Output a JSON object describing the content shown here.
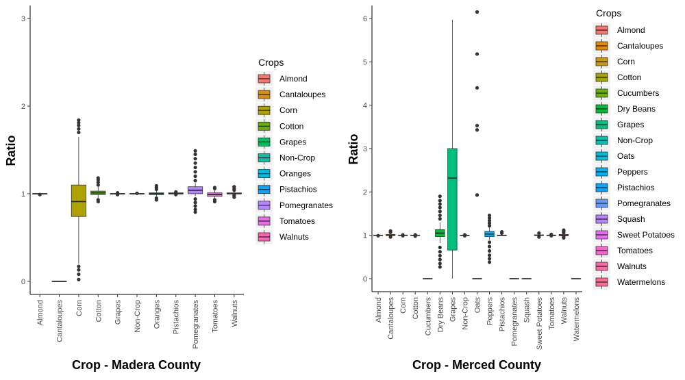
{
  "chart_data": [
    {
      "type": "box",
      "xlabel": "Crop - Madera County",
      "ylabel": "Ratio",
      "ylim": [
        -0.15,
        3.15
      ],
      "yticks": [
        0,
        1,
        2,
        3
      ],
      "grid": false,
      "legend_title": "Crops",
      "legend_position": "right",
      "categories": [
        "Almond",
        "Cantaloupes",
        "Corn",
        "Cotton",
        "Grapes",
        "Non-Crop",
        "Oranges",
        "Pistachios",
        "Pomegranates",
        "Tomatoes",
        "Walnuts"
      ],
      "colors": [
        "#F8766D",
        "#DB8E00",
        "#AEA200",
        "#64B200",
        "#00BD5C",
        "#00C1A7",
        "#00BADE",
        "#00A6FF",
        "#B385FF",
        "#EF67EB",
        "#FF63B6"
      ],
      "boxes": [
        {
          "lo": 1.0,
          "q1": 1.0,
          "med": 1.0,
          "q3": 1.0,
          "hi": 1.0,
          "outliers": [
            0.99
          ]
        },
        {
          "lo": 0.0,
          "q1": 0.0,
          "med": 0.0,
          "q3": 0.0,
          "hi": 0.0,
          "outliers": []
        },
        {
          "lo": 0.2,
          "q1": 0.74,
          "med": 0.91,
          "q3": 1.1,
          "hi": 1.65,
          "outliers": [
            1.7,
            1.74,
            1.78,
            1.81,
            1.84,
            0.17,
            0.13,
            0.08,
            0.02
          ]
        },
        {
          "lo": 0.95,
          "q1": 0.99,
          "med": 1.01,
          "q3": 1.03,
          "hi": 1.08,
          "outliers": [
            1.1,
            1.13,
            1.16,
            1.18,
            0.93,
            0.91
          ]
        },
        {
          "lo": 1.0,
          "q1": 1.0,
          "med": 1.0,
          "q3": 1.0,
          "hi": 1.0,
          "outliers": [
            1.01,
            0.99
          ]
        },
        {
          "lo": 1.0,
          "q1": 1.0,
          "med": 1.0,
          "q3": 1.0,
          "hi": 1.0,
          "outliers": [
            1.005
          ]
        },
        {
          "lo": 0.97,
          "q1": 0.99,
          "med": 1.0,
          "q3": 1.01,
          "hi": 1.03,
          "outliers": [
            1.05,
            1.07,
            1.09,
            0.95,
            0.93
          ]
        },
        {
          "lo": 1.0,
          "q1": 1.0,
          "med": 1.0,
          "q3": 1.01,
          "hi": 1.01,
          "outliers": [
            1.02,
            0.99
          ]
        },
        {
          "lo": 0.97,
          "q1": 1.0,
          "med": 1.04,
          "q3": 1.08,
          "hi": 1.12,
          "outliers": [
            1.15,
            1.2,
            1.25,
            1.3,
            1.35,
            1.4,
            1.45,
            1.49,
            0.94,
            0.9,
            0.86,
            0.82,
            0.79
          ]
        },
        {
          "lo": 0.95,
          "q1": 0.97,
          "med": 0.99,
          "q3": 1.01,
          "hi": 1.04,
          "outliers": [
            1.06,
            1.07,
            0.93,
            0.91
          ]
        },
        {
          "lo": 0.99,
          "q1": 1.0,
          "med": 1.0,
          "q3": 1.01,
          "hi": 1.02,
          "outliers": [
            1.04,
            1.06,
            1.08,
            0.98,
            0.96
          ]
        }
      ]
    },
    {
      "type": "box",
      "xlabel": "Crop - Merced County",
      "ylabel": "Ratio",
      "ylim": [
        -0.3,
        6.3
      ],
      "yticks": [
        0,
        1,
        2,
        3,
        4,
        5,
        6
      ],
      "grid": false,
      "legend_title": "Crops",
      "legend_position": "right",
      "categories": [
        "Almond",
        "Cantaloupes",
        "Corn",
        "Cotton",
        "Cucumbers",
        "Dry Beans",
        "Grapes",
        "Non-Crop",
        "Oats",
        "Peppers",
        "Pistachios",
        "Pomegranates",
        "Squash",
        "Sweet Potatoes",
        "Tomatoes",
        "Walnuts",
        "Watermelons"
      ],
      "colors": [
        "#F8766D",
        "#E58700",
        "#C99800",
        "#A3A500",
        "#6BB100",
        "#00BA38",
        "#00BF7D",
        "#00C0AF",
        "#00BCD8",
        "#00B0F6",
        "#00A5FF",
        "#619CFF",
        "#B983FF",
        "#E76BF3",
        "#FD61D1",
        "#FF67A4",
        "#FF6C91"
      ],
      "boxes": [
        {
          "lo": 1.0,
          "q1": 1.0,
          "med": 1.0,
          "q3": 1.0,
          "hi": 1.0,
          "outliers": [
            0.99
          ]
        },
        {
          "lo": 0.98,
          "q1": 1.0,
          "med": 1.0,
          "q3": 1.02,
          "hi": 1.05,
          "outliers": [
            1.07,
            1.1,
            0.96
          ]
        },
        {
          "lo": 1.0,
          "q1": 1.0,
          "med": 1.0,
          "q3": 1.0,
          "hi": 1.0,
          "outliers": [
            0.99,
            1.01
          ]
        },
        {
          "lo": 1.0,
          "q1": 1.0,
          "med": 1.0,
          "q3": 1.0,
          "hi": 1.0,
          "outliers": [
            0.98,
            1.01
          ]
        },
        {
          "lo": 0.0,
          "q1": 0.0,
          "med": 0.0,
          "q3": 0.0,
          "hi": 0.0,
          "outliers": []
        },
        {
          "lo": 0.82,
          "q1": 0.97,
          "med": 1.05,
          "q3": 1.13,
          "hi": 1.3,
          "outliers": [
            1.38,
            1.46,
            1.55,
            1.64,
            1.72,
            1.8,
            1.9,
            0.72,
            0.62,
            0.53,
            0.44,
            0.35,
            0.27
          ]
        },
        {
          "lo": 0.0,
          "q1": 0.66,
          "med": 2.32,
          "q3": 3.0,
          "hi": 5.97,
          "outliers": []
        },
        {
          "lo": 1.0,
          "q1": 1.0,
          "med": 1.0,
          "q3": 1.0,
          "hi": 1.0,
          "outliers": [
            1.01,
            0.99
          ]
        },
        {
          "lo": 0.0,
          "q1": 0.0,
          "med": 0.0,
          "q3": 0.0,
          "hi": 0.0,
          "outliers": [
            1.93,
            3.43,
            3.53,
            4.4,
            5.18,
            6.15
          ]
        },
        {
          "lo": 0.9,
          "q1": 0.97,
          "med": 1.03,
          "q3": 1.09,
          "hi": 1.18,
          "outliers": [
            1.22,
            1.28,
            1.34,
            1.4,
            1.46,
            0.84,
            0.74,
            0.64,
            0.54,
            0.46,
            0.38
          ]
        },
        {
          "lo": 1.0,
          "q1": 1.0,
          "med": 1.0,
          "q3": 1.0,
          "hi": 1.02,
          "outliers": [
            1.05,
            1.08
          ]
        },
        {
          "lo": 0.0,
          "q1": 0.0,
          "med": 0.0,
          "q3": 0.0,
          "hi": 0.0,
          "outliers": []
        },
        {
          "lo": 0.0,
          "q1": 0.0,
          "med": 0.0,
          "q3": 0.0,
          "hi": 0.0,
          "outliers": []
        },
        {
          "lo": 0.98,
          "q1": 1.0,
          "med": 1.0,
          "q3": 1.01,
          "hi": 1.03,
          "outliers": [
            1.05,
            0.96
          ]
        },
        {
          "lo": 1.0,
          "q1": 1.0,
          "med": 1.0,
          "q3": 1.0,
          "hi": 1.01,
          "outliers": [
            1.02,
            0.99
          ]
        },
        {
          "lo": 0.98,
          "q1": 0.99,
          "med": 1.0,
          "q3": 1.02,
          "hi": 1.04,
          "outliers": [
            1.06,
            1.09,
            1.12,
            0.96,
            0.94
          ]
        },
        {
          "lo": 0.0,
          "q1": 0.0,
          "med": 0.0,
          "q3": 0.0,
          "hi": 0.0,
          "outliers": []
        }
      ]
    }
  ]
}
